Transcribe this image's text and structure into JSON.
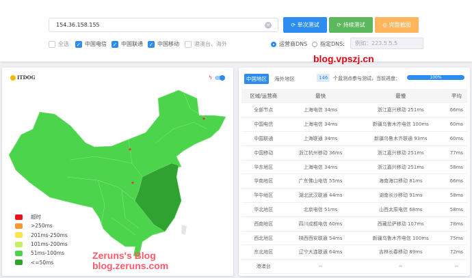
{
  "search": {
    "ip": "154.36.158.155",
    "btn_single": "单次测试",
    "btn_continuous": "持续测试",
    "btn_screenshot": "完整截图"
  },
  "filters": [
    {
      "label": "全选",
      "checked": false
    },
    {
      "label": "中国电信",
      "checked": true
    },
    {
      "label": "中国联通",
      "checked": true
    },
    {
      "label": "中国移动",
      "checked": true
    },
    {
      "label": "港澳台、海外",
      "checked": false
    }
  ],
  "dns": {
    "isp_label": "运营商DNS",
    "custom_label": "指定DNS:",
    "placeholder": "例如：223.5.5.5"
  },
  "watermark_top": "blog.vpszj.cn",
  "map": {
    "logo": "ITDOG",
    "legend": [
      {
        "label": "超时",
        "color": "#e8141c"
      },
      {
        "label": ">250ms",
        "color": "#f79634"
      },
      {
        "label": "201ms-250ms",
        "color": "#fde748"
      },
      {
        "label": "101ms-200ms",
        "color": "#c6f064"
      },
      {
        "label": "51ms-100ms",
        "color": "#4cd44c"
      },
      {
        "label": "<=50ms",
        "color": "#2fa22f"
      }
    ],
    "watermark": [
      "Zeruns's Blog",
      "blog.zeruns.com"
    ]
  },
  "results": {
    "tab_cn": "中国地区",
    "tab_overseas": "海外地区",
    "count": "146",
    "count_text": "个监测点参与测试，当前进度：",
    "progress": 100,
    "progress_text": "100%",
    "headers": [
      "区域/运营商",
      "最快",
      "最慢",
      "平均"
    ],
    "rows": [
      [
        "全部节点",
        "上海电信 34ms",
        "浙江嘉兴移动 251ms",
        "66ms"
      ],
      [
        "中国电信",
        "上海电信 34ms",
        "新疆乌鲁木齐电信 100ms",
        "60ms"
      ],
      [
        "中国联通",
        "上海联通 34ms",
        "新疆乌鲁木齐联通 93ms",
        "60ms"
      ],
      [
        "中国移动",
        "浙江杭州移动 36ms",
        "浙江嘉兴移动 251ms",
        "77ms"
      ],
      [
        "华东地区",
        "上海电信 34ms",
        "浙江嘉兴移动 251ms",
        "58ms"
      ],
      [
        "华南地区",
        "广东佛山电信 55ms",
        "海南海口移动 81ms",
        "66ms"
      ],
      [
        "华中地区",
        "湖北武汉联通 44ms",
        "湖南长沙移动 91ms",
        "58ms"
      ],
      [
        "华北地区",
        "北京电信 51ms",
        "山西太原电信 68ms",
        "58ms"
      ],
      [
        "西南地区",
        "四川成都电信 60ms",
        "西藏拉萨移动 107ms",
        "78ms"
      ],
      [
        "西北地区",
        "陕西西安联通 54ms",
        "新疆乌鲁木齐电信 100ms",
        "75ms"
      ],
      [
        "东北地区",
        "辽宁大连联通 64ms",
        "吉林长春移动 89ms",
        "72ms"
      ],
      [
        "港澳台",
        "--",
        "--",
        "--"
      ]
    ]
  }
}
